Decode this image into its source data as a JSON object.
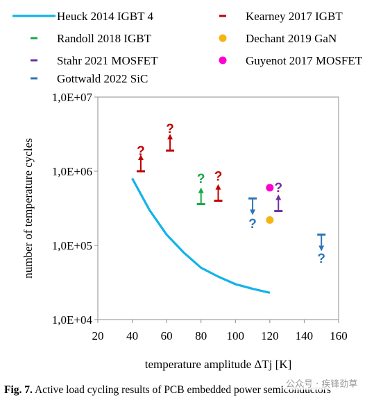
{
  "chart_data": {
    "type": "scatter",
    "title": "",
    "xlabel": "temperature amplitude ΔTj [K]",
    "ylabel": "number of temperature cycles",
    "x_scale": "linear",
    "y_scale": "log",
    "xlim": [
      20,
      160
    ],
    "ylim": [
      10000,
      10000000
    ],
    "x_ticks": [
      20,
      40,
      60,
      80,
      100,
      120,
      140,
      160
    ],
    "x_tick_labels": [
      "20",
      "40",
      "60",
      "80",
      "100",
      "120",
      "140",
      "160"
    ],
    "y_ticks": [
      10000,
      100000,
      1000000,
      10000000
    ],
    "y_tick_labels": [
      "1,0E+04",
      "1,0E+05",
      "1,0E+06",
      "1,0E+07"
    ],
    "grid": false,
    "legend_position": "top",
    "series": [
      {
        "name": "Heuck 2014 IGBT 4",
        "kind": "line",
        "color": "#12b3e9",
        "points": [
          [
            40,
            800000
          ],
          [
            50,
            300000
          ],
          [
            60,
            140000
          ],
          [
            70,
            80000
          ],
          [
            80,
            50000
          ],
          [
            90,
            38000
          ],
          [
            100,
            30000
          ],
          [
            110,
            26000
          ],
          [
            120,
            23000
          ]
        ]
      },
      {
        "name": "Kearney 2017 IGBT",
        "kind": "lower-bound",
        "color": "#c00000",
        "points": [
          [
            45,
            1000000
          ],
          [
            62,
            1900000
          ],
          [
            90,
            400000
          ]
        ]
      },
      {
        "name": "Randoll 2018 IGBT",
        "kind": "lower-bound",
        "color": "#17a848",
        "points": [
          [
            80,
            360000
          ]
        ]
      },
      {
        "name": "Dechant 2019 GaN",
        "kind": "point",
        "color": "#f5b414",
        "points": [
          [
            120,
            220000
          ]
        ]
      },
      {
        "name": "Stahr 2021 MOSFET",
        "kind": "lower-bound",
        "color": "#7030a0",
        "points": [
          [
            125,
            290000
          ]
        ]
      },
      {
        "name": "Guyenot 2017 MOSFET",
        "kind": "point",
        "color": "#ff00d2",
        "points": [
          [
            120,
            600000
          ]
        ]
      },
      {
        "name": "Gottwald 2022 SiC",
        "kind": "upper-bound",
        "color": "#2e75b6",
        "points": [
          [
            110,
            430000
          ],
          [
            150,
            140000
          ]
        ]
      }
    ],
    "annotations": [
      {
        "text": "?",
        "color": "#c00000",
        "x": 45,
        "y": 1900000
      },
      {
        "text": "?",
        "color": "#c00000",
        "x": 62,
        "y": 3800000
      },
      {
        "text": "?",
        "color": "#c00000",
        "x": 90,
        "y": 870000
      },
      {
        "text": "?",
        "color": "#17a848",
        "x": 80,
        "y": 810000
      },
      {
        "text": "?",
        "color": "#7030a0",
        "x": 125,
        "y": 610000
      },
      {
        "text": "?",
        "color": "#2e75b6",
        "x": 110,
        "y": 200000
      },
      {
        "text": "?",
        "color": "#2e75b6",
        "x": 150,
        "y": 68000
      }
    ]
  },
  "caption": {
    "label": "Fig. 7.",
    "text": "Active load cycling results of PCB embedded power semiconductors"
  },
  "watermark": "公众号 · 疾锋劲草"
}
